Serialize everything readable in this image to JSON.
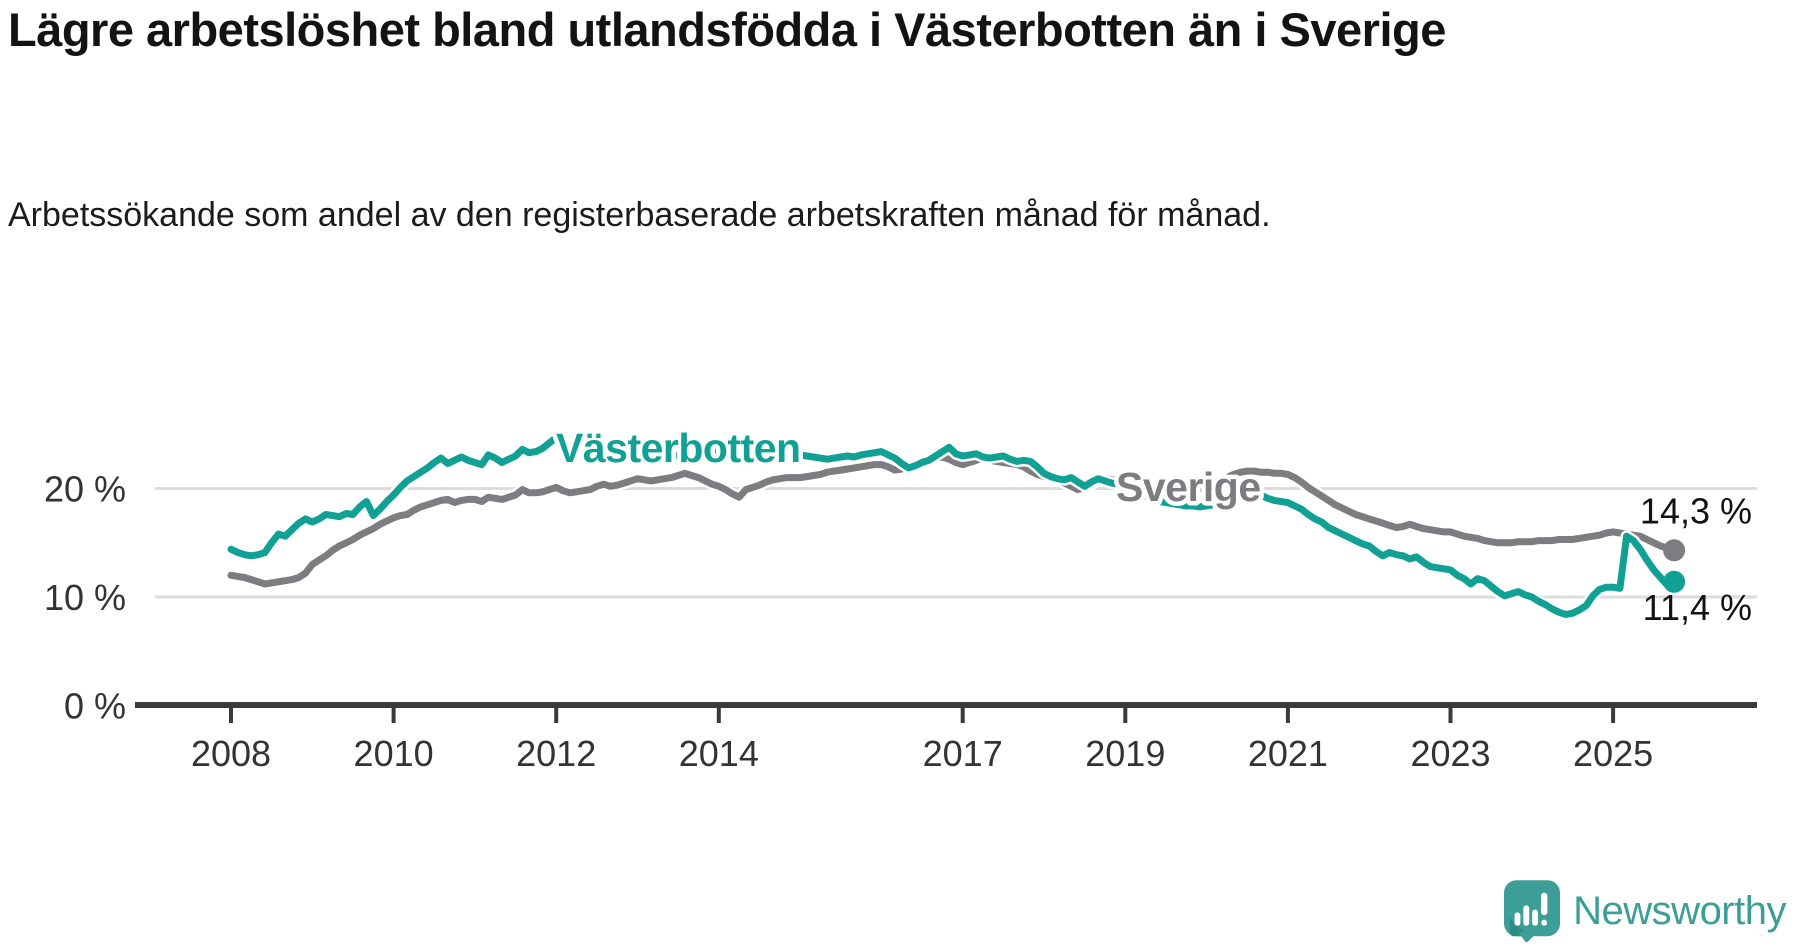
{
  "header": {
    "title": "Lägre arbetslöshet bland utlandsfödda i Västerbotten än i Sverige",
    "subtitle": "Arbetssökande som andel av den registerbaserade arbetskraften månad för månad."
  },
  "footer": {
    "brand": "Newsworthy",
    "logo_icon": "newsworthy-speech-bubble-chart-icon"
  },
  "colors": {
    "vasterbotten_teal": "#10a194",
    "sverige_gray": "#7c7c81",
    "gridline": "#dcdcdc",
    "axis": "#3a3a3a",
    "tick_text": "#333333",
    "end_label_text": "#121212",
    "logo_teal": "#3d9e97",
    "logo_teal_dark": "#2e8b85"
  },
  "chart_data": {
    "type": "line",
    "title": "Lägre arbetslöshet bland utlandsfödda i Västerbotten än i Sverige",
    "unit": "percent of registered labour force",
    "x_range": {
      "start": "2008-01",
      "end": "2025-10",
      "points_per_year": 12
    },
    "x_ticks": [
      {
        "year": 2008,
        "label": "2008"
      },
      {
        "year": 2010,
        "label": "2010"
      },
      {
        "year": 2012,
        "label": "2012"
      },
      {
        "year": 2014,
        "label": "2014"
      },
      {
        "year": 2017,
        "label": "2017"
      },
      {
        "year": 2019,
        "label": "2019"
      },
      {
        "year": 2021,
        "label": "2021"
      },
      {
        "year": 2023,
        "label": "2023"
      },
      {
        "year": 2025,
        "label": "2025"
      }
    ],
    "y_ticks": [
      {
        "value": 20,
        "label": "20 %"
      },
      {
        "value": 10,
        "label": "10 %"
      },
      {
        "value": 0,
        "label": "0 %"
      }
    ],
    "ylim": [
      0,
      27
    ],
    "grid": "horizontal",
    "legend_position": "inline-labels",
    "series": [
      {
        "name": "Sverige",
        "color": "#7c7c81",
        "end_label": "14,3 %",
        "end_value": 14.3,
        "end_label_position": "above",
        "values": [
          12.0,
          11.9,
          11.8,
          11.6,
          11.4,
          11.2,
          11.3,
          11.4,
          11.5,
          11.6,
          11.8,
          12.2,
          13.0,
          13.4,
          13.8,
          14.3,
          14.7,
          15.0,
          15.3,
          15.7,
          16.0,
          16.3,
          16.7,
          17.0,
          17.3,
          17.5,
          17.6,
          18.0,
          18.3,
          18.5,
          18.7,
          18.9,
          19.0,
          18.7,
          18.9,
          19.0,
          19.0,
          18.8,
          19.2,
          19.1,
          19.0,
          19.2,
          19.4,
          19.9,
          19.6,
          19.6,
          19.7,
          19.9,
          20.1,
          19.8,
          19.6,
          19.7,
          19.8,
          19.9,
          20.2,
          20.4,
          20.2,
          20.3,
          20.5,
          20.7,
          20.9,
          20.8,
          20.7,
          20.8,
          20.9,
          21.0,
          21.2,
          21.4,
          21.2,
          21.0,
          20.7,
          20.4,
          20.2,
          19.9,
          19.5,
          19.2,
          19.9,
          20.1,
          20.3,
          20.6,
          20.8,
          20.9,
          21.0,
          21.0,
          21.0,
          21.1,
          21.2,
          21.3,
          21.5,
          21.6,
          21.7,
          21.8,
          21.9,
          22.0,
          22.1,
          22.2,
          22.2,
          22.0,
          21.7,
          21.8,
          22.0,
          22.2,
          22.4,
          22.6,
          22.8,
          22.9,
          22.7,
          22.4,
          22.2,
          22.4,
          22.6,
          22.8,
          22.6,
          22.5,
          22.4,
          22.3,
          22.2,
          22.0,
          21.6,
          21.3,
          21.1,
          20.9,
          20.8,
          20.5,
          20.2,
          19.9,
          20.1,
          20.4,
          20.7,
          20.9,
          20.8,
          20.7,
          20.6,
          20.5,
          20.4,
          20.3,
          20.2,
          20.1,
          20.0,
          20.0,
          19.9,
          19.9,
          20.0,
          20.0,
          20.1,
          20.2,
          20.6,
          21.0,
          21.3,
          21.5,
          21.6,
          21.6,
          21.5,
          21.5,
          21.4,
          21.4,
          21.3,
          21.0,
          20.6,
          20.1,
          19.7,
          19.3,
          18.9,
          18.5,
          18.2,
          17.9,
          17.6,
          17.4,
          17.2,
          17.0,
          16.8,
          16.6,
          16.4,
          16.5,
          16.7,
          16.5,
          16.3,
          16.2,
          16.1,
          16.0,
          16.0,
          15.8,
          15.6,
          15.5,
          15.4,
          15.2,
          15.1,
          15.0,
          15.0,
          15.0,
          15.1,
          15.1,
          15.1,
          15.2,
          15.2,
          15.2,
          15.3,
          15.3,
          15.3,
          15.4,
          15.5,
          15.6,
          15.7,
          15.9,
          16.0,
          15.9,
          15.8,
          15.7,
          15.6,
          15.3,
          15.0,
          14.7,
          14.5,
          14.3
        ]
      },
      {
        "name": "Västerbotten",
        "color": "#10a194",
        "end_label": "11,4 %",
        "end_value": 11.4,
        "end_label_position": "below",
        "values": [
          14.4,
          14.1,
          13.9,
          13.8,
          13.9,
          14.1,
          15.0,
          15.8,
          15.6,
          16.2,
          16.8,
          17.2,
          16.9,
          17.2,
          17.6,
          17.5,
          17.4,
          17.7,
          17.6,
          18.3,
          18.8,
          17.5,
          18.1,
          18.8,
          19.4,
          20.1,
          20.7,
          21.1,
          21.5,
          21.9,
          22.4,
          22.8,
          22.3,
          22.6,
          22.9,
          22.6,
          22.4,
          22.2,
          23.1,
          22.8,
          22.4,
          22.7,
          23.0,
          23.6,
          23.3,
          23.4,
          23.7,
          24.2,
          24.7,
          24.2,
          23.9,
          24.1,
          23.8,
          23.6,
          23.4,
          23.2,
          23.3,
          23.4,
          23.5,
          23.4,
          23.5,
          23.4,
          23.3,
          23.2,
          23.1,
          23.0,
          23.1,
          23.2,
          23.1,
          23.0,
          23.2,
          23.3,
          23.4,
          23.2,
          23.0,
          22.9,
          22.8,
          22.7,
          22.8,
          22.9,
          23.0,
          23.1,
          23.0,
          23.1,
          23.1,
          23.0,
          22.9,
          22.8,
          22.7,
          22.8,
          22.9,
          23.0,
          22.9,
          23.1,
          23.2,
          23.3,
          23.4,
          23.1,
          22.8,
          22.3,
          21.9,
          22.1,
          22.4,
          22.6,
          23.0,
          23.4,
          23.8,
          23.2,
          23.0,
          23.1,
          23.2,
          22.9,
          22.8,
          22.9,
          23.0,
          22.7,
          22.5,
          22.6,
          22.5,
          22.0,
          21.4,
          21.1,
          20.9,
          20.8,
          21.0,
          20.6,
          20.2,
          20.6,
          20.9,
          20.7,
          20.5,
          20.4,
          20.2,
          19.9,
          19.6,
          19.3,
          19.0,
          18.8,
          18.7,
          18.6,
          18.5,
          18.4,
          18.4,
          18.3,
          18.4,
          18.5,
          19.0,
          19.5,
          19.8,
          19.9,
          19.8,
          19.6,
          19.4,
          19.1,
          18.9,
          18.8,
          18.7,
          18.4,
          18.1,
          17.6,
          17.2,
          16.9,
          16.4,
          16.1,
          15.8,
          15.5,
          15.2,
          14.9,
          14.7,
          14.2,
          13.8,
          14.1,
          13.9,
          13.8,
          13.5,
          13.7,
          13.2,
          12.8,
          12.7,
          12.6,
          12.5,
          12.0,
          11.7,
          11.2,
          11.7,
          11.5,
          11.0,
          10.5,
          10.1,
          10.3,
          10.5,
          10.2,
          10.0,
          9.6,
          9.3,
          8.9,
          8.6,
          8.4,
          8.5,
          8.8,
          9.2,
          10.1,
          10.7,
          10.9,
          10.9,
          10.8,
          15.6,
          15.2,
          14.4,
          13.4,
          12.5,
          11.8,
          11.1,
          11.4
        ]
      }
    ]
  }
}
